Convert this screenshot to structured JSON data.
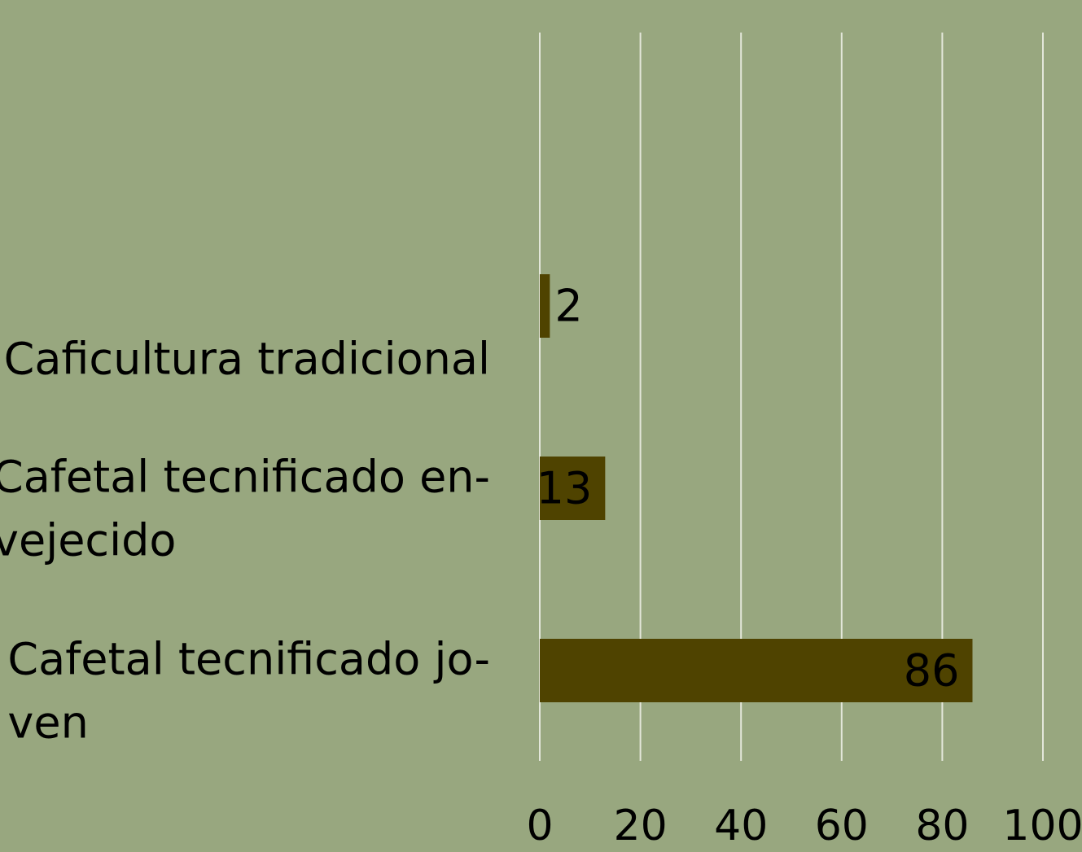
{
  "chart_data": {
    "type": "bar",
    "orientation": "horizontal",
    "categories": [
      [
        "Caficultura tradicional"
      ],
      [
        "Cafetal tecnificado en-",
        "vejecido"
      ],
      [
        "Cafetal tecnificado jo-",
        "ven"
      ]
    ],
    "values": [
      2,
      13,
      86
    ],
    "color": "#4f4300",
    "xlim": [
      0,
      100
    ],
    "xticks": [
      0,
      20,
      40,
      60,
      80,
      100
    ],
    "grid": true
  }
}
